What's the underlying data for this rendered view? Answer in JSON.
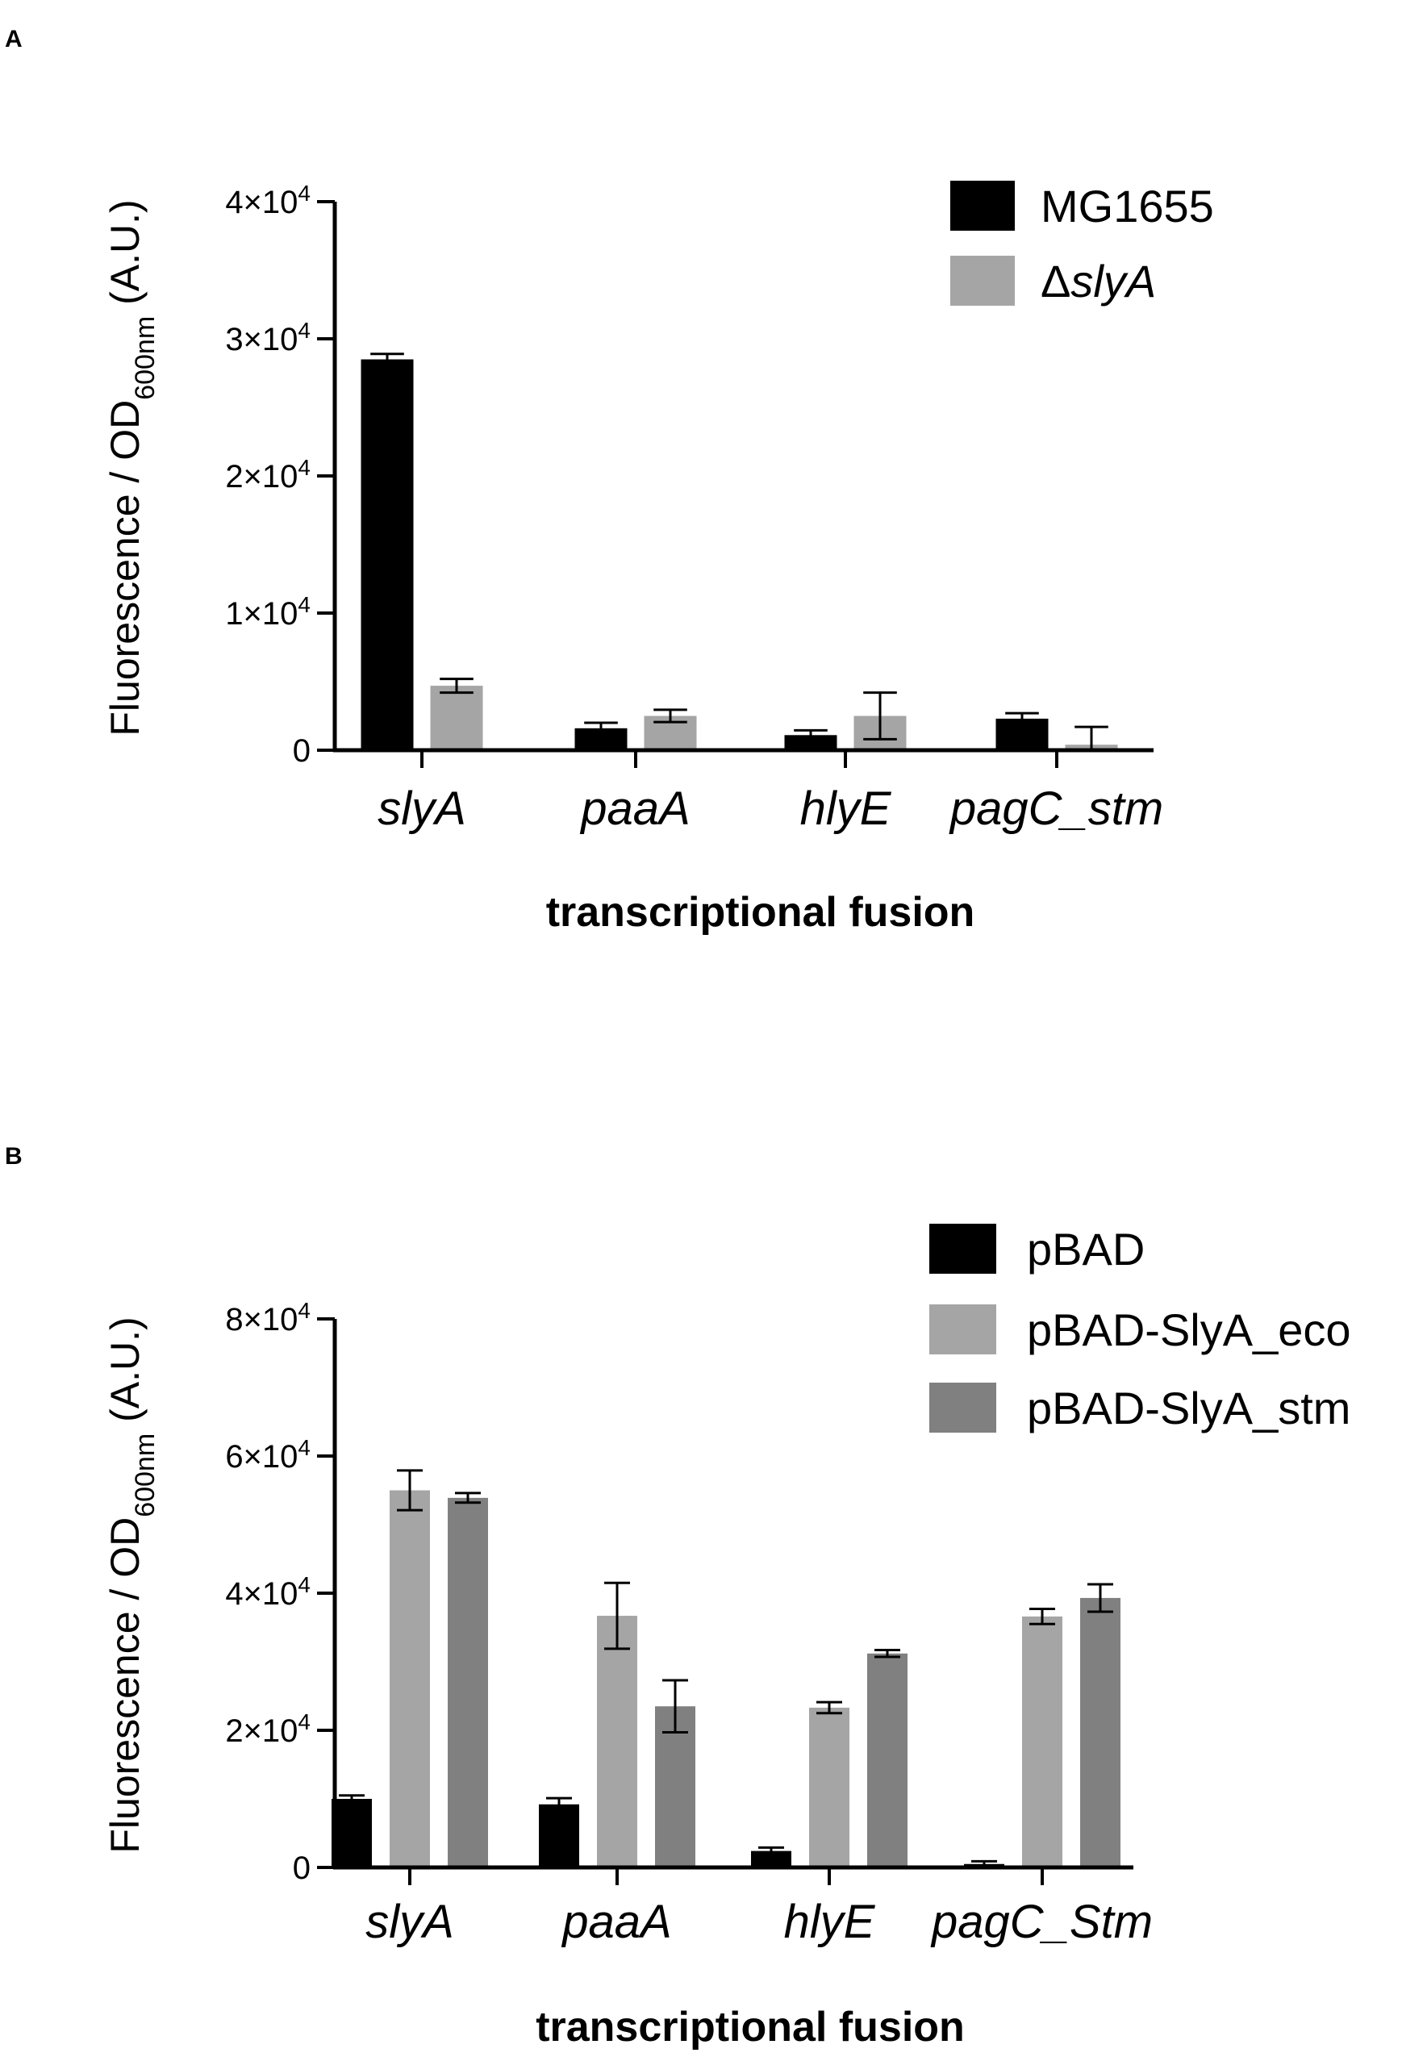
{
  "chart_data": [
    {
      "panel": "A",
      "type": "bar",
      "categories": [
        "slyA",
        "paaA",
        "hlyE",
        "pagC_stm"
      ],
      "series": [
        {
          "name": "MG1655",
          "color": "#000000",
          "values": [
            28500,
            1600,
            1100,
            2300
          ],
          "errors": [
            400,
            400,
            350,
            400
          ]
        },
        {
          "name": "ΔslyA",
          "color": "#a5a5a5",
          "values": [
            4700,
            2500,
            2500,
            400
          ],
          "errors": [
            500,
            450,
            1700,
            1300
          ]
        }
      ],
      "ylim": [
        0,
        40000
      ],
      "yticks": [
        {
          "value": 0,
          "mant": "0",
          "exp": ""
        },
        {
          "value": 10000,
          "mant": "1×10",
          "exp": "4"
        },
        {
          "value": 20000,
          "mant": "2×10",
          "exp": "4"
        },
        {
          "value": 30000,
          "mant": "3×10",
          "exp": "4"
        },
        {
          "value": 40000,
          "mant": "4×10",
          "exp": "4"
        }
      ],
      "ylabel": {
        "pre": "Fluorescence / OD",
        "sub": "600nm",
        "post": " (A.U.)"
      },
      "xlabel": "transcriptional fusion",
      "legend_position": "top-right",
      "grid": false
    },
    {
      "panel": "B",
      "type": "bar",
      "categories": [
        "slyA",
        "paaA",
        "hlyE",
        "pagC_Stm"
      ],
      "series": [
        {
          "name": "pBAD",
          "color": "#000000",
          "values": [
            10000,
            9200,
            2400,
            500
          ],
          "errors": [
            500,
            900,
            500,
            400
          ]
        },
        {
          "name": "pBAD-SlyA_eco",
          "color": "#a5a5a5",
          "values": [
            55000,
            36700,
            23300,
            36600
          ],
          "errors": [
            2900,
            4800,
            800,
            1100
          ]
        },
        {
          "name": "pBAD-SlyA_stm",
          "color": "#808080",
          "values": [
            53900,
            23500,
            31200,
            39300
          ],
          "errors": [
            700,
            3800,
            500,
            2000
          ]
        }
      ],
      "ylim": [
        0,
        80000
      ],
      "yticks": [
        {
          "value": 0,
          "mant": "0",
          "exp": ""
        },
        {
          "value": 20000,
          "mant": "2×10",
          "exp": "4"
        },
        {
          "value": 40000,
          "mant": "4×10",
          "exp": "4"
        },
        {
          "value": 60000,
          "mant": "6×10",
          "exp": "4"
        },
        {
          "value": 80000,
          "mant": "8×10",
          "exp": "4"
        }
      ],
      "ylabel": {
        "pre": "Fluorescence / OD",
        "sub": "600nm",
        "post": " (A.U.)"
      },
      "xlabel": "transcriptional fusion",
      "legend_position": "top-right",
      "grid": false
    }
  ]
}
